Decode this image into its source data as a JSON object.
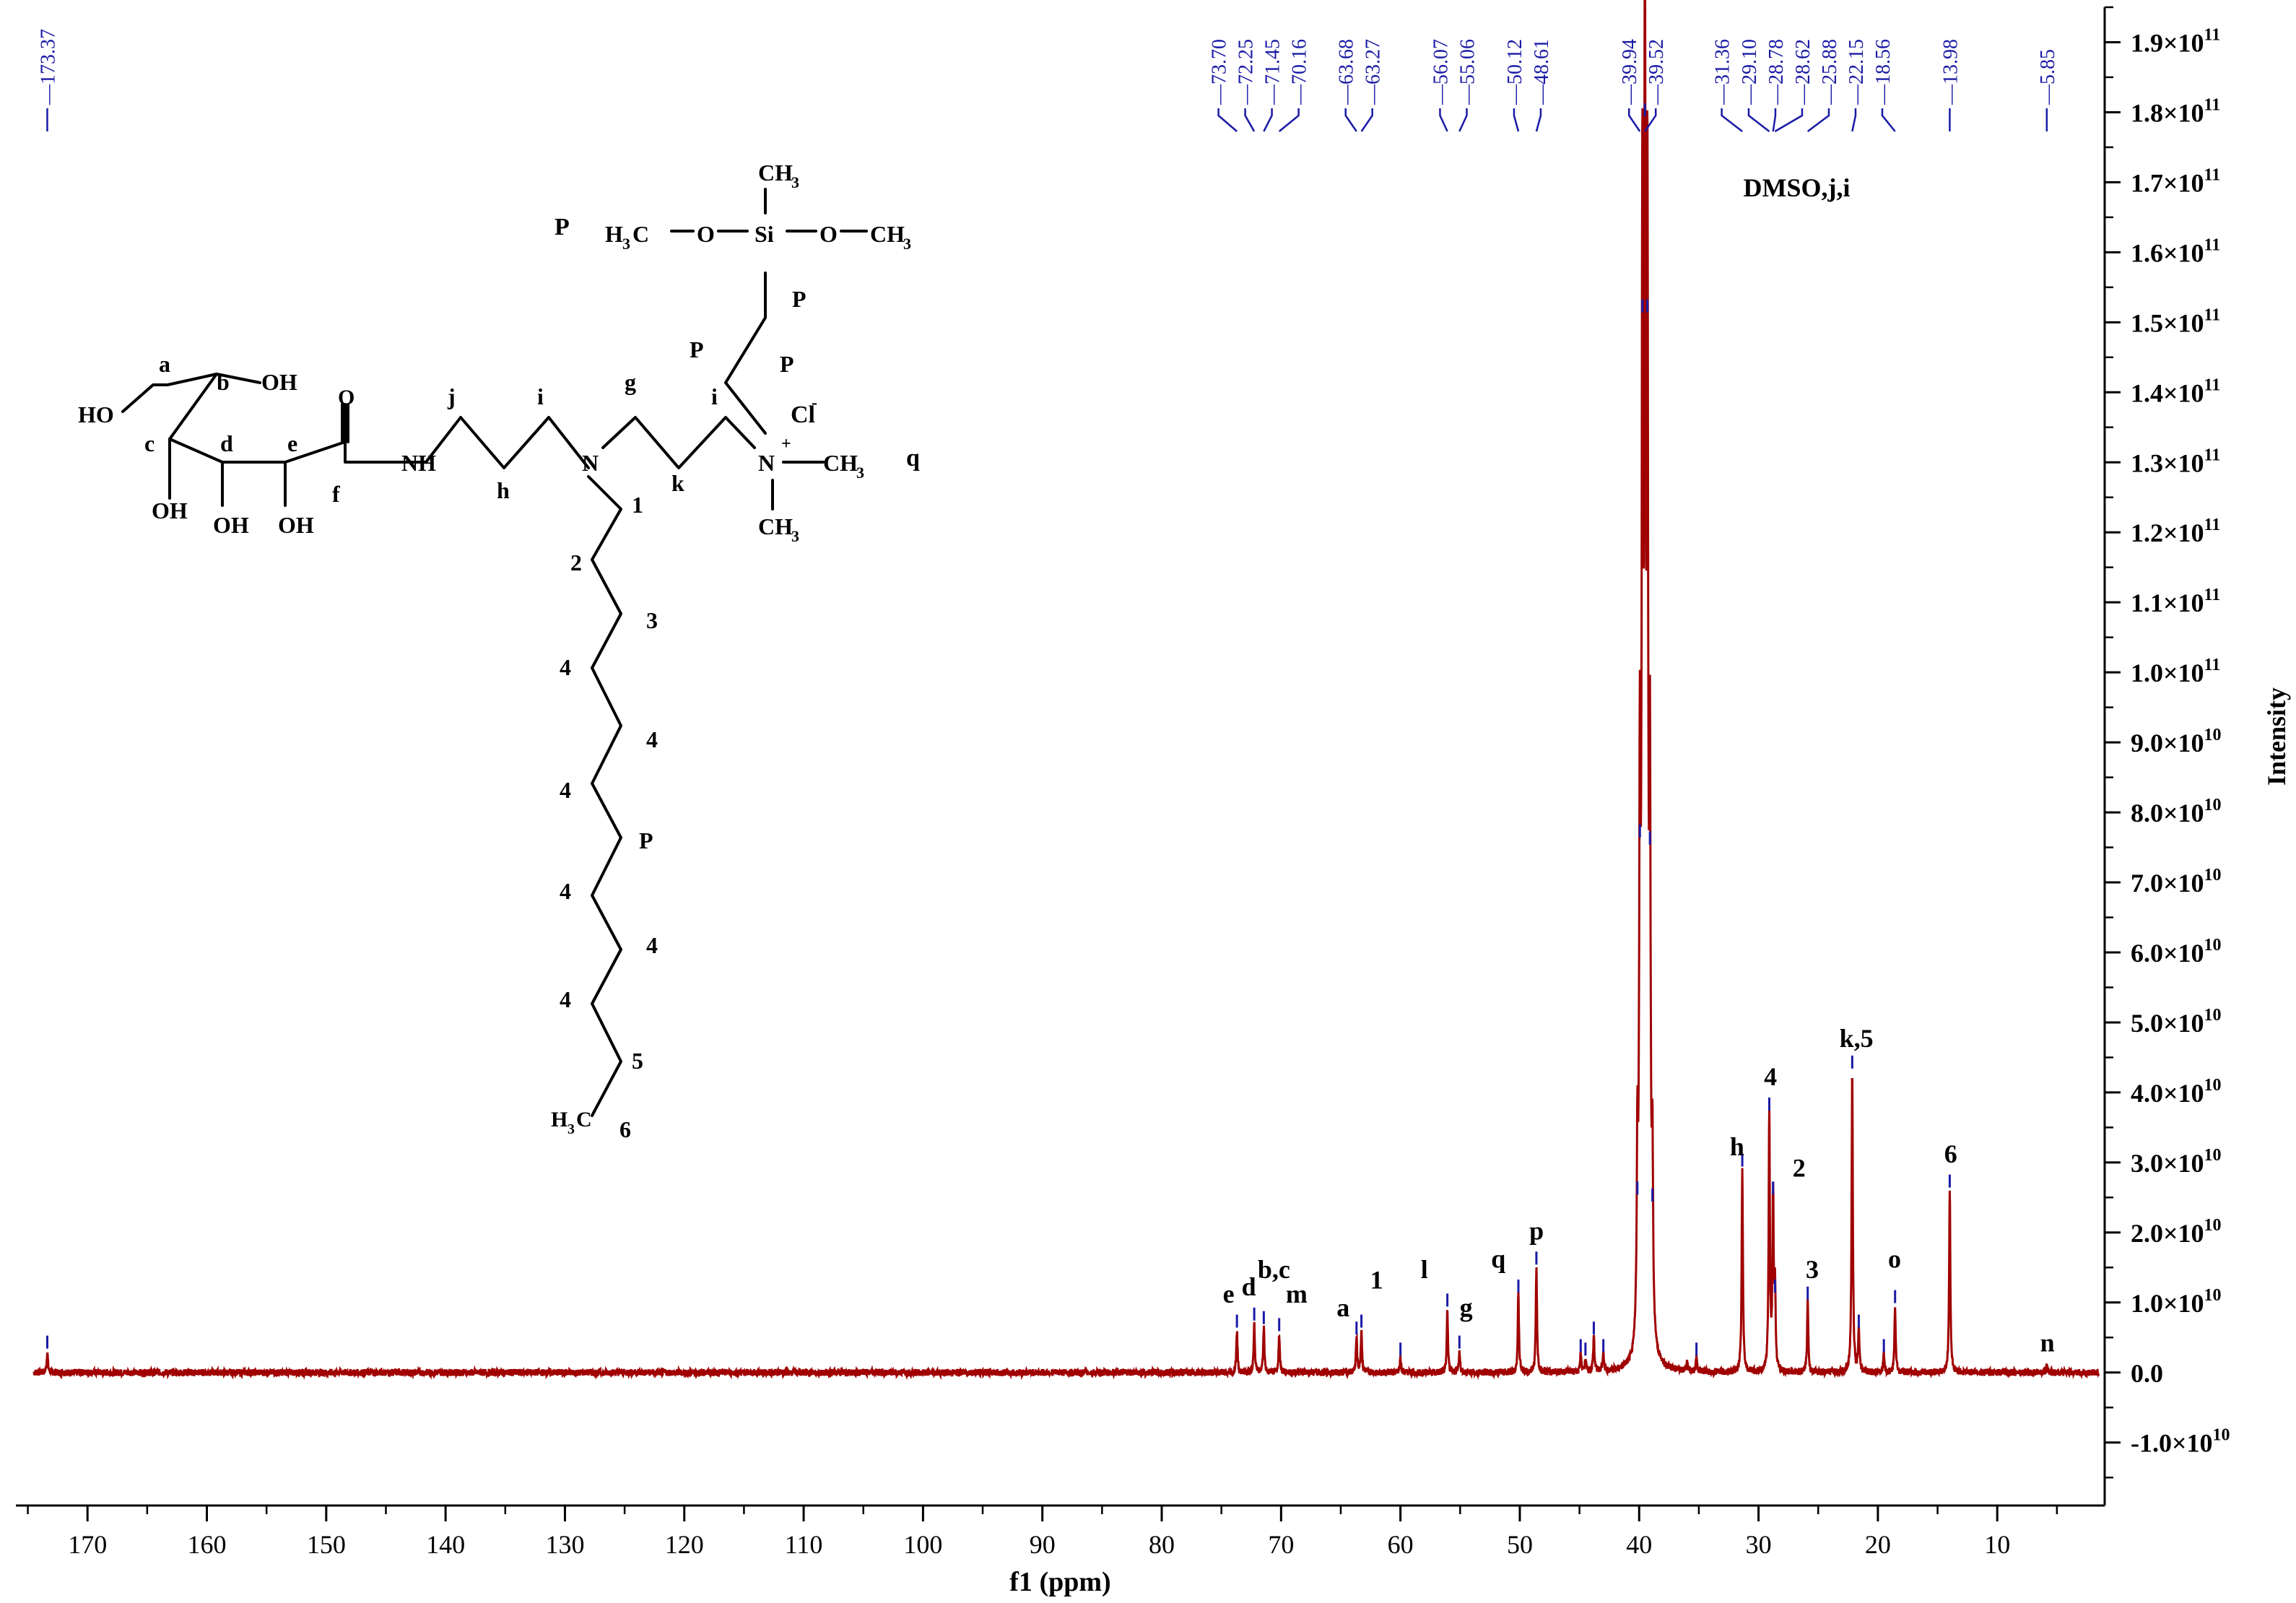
{
  "chart_data": {
    "type": "line",
    "xlabel": "f1 (ppm)",
    "ylabel": "Intensity",
    "xlim": [
      176,
      1
    ],
    "x_reversed": true,
    "ylim": [
      -19000000000.0,
      195000000000.0
    ],
    "x_ticks": [
      170,
      160,
      150,
      140,
      130,
      120,
      110,
      100,
      90,
      80,
      70,
      60,
      50,
      40,
      30,
      20,
      10
    ],
    "x_tick_labels": [
      "170",
      "160",
      "150",
      "140",
      "130",
      "120",
      "110",
      "100",
      "90",
      "80",
      "70",
      "60",
      "50",
      "40",
      "30",
      "20",
      "10"
    ],
    "y_ticks": [
      {
        "value": 190000000000.0,
        "mant": "1.9",
        "exp": "11"
      },
      {
        "value": 180000000000.0,
        "mant": "1.8",
        "exp": "11"
      },
      {
        "value": 170000000000.0,
        "mant": "1.7",
        "exp": "11"
      },
      {
        "value": 160000000000.0,
        "mant": "1.6",
        "exp": "11"
      },
      {
        "value": 150000000000.0,
        "mant": "1.5",
        "exp": "11"
      },
      {
        "value": 140000000000.0,
        "mant": "1.4",
        "exp": "11"
      },
      {
        "value": 130000000000.0,
        "mant": "1.3",
        "exp": "11"
      },
      {
        "value": 120000000000.0,
        "mant": "1.2",
        "exp": "11"
      },
      {
        "value": 110000000000.0,
        "mant": "1.1",
        "exp": "11"
      },
      {
        "value": 100000000000.0,
        "mant": "1.0",
        "exp": "11"
      },
      {
        "value": 90000000000.0,
        "mant": "9.0",
        "exp": "10"
      },
      {
        "value": 80000000000.0,
        "mant": "8.0",
        "exp": "10"
      },
      {
        "value": 70000000000.0,
        "mant": "7.0",
        "exp": "10"
      },
      {
        "value": 60000000000.0,
        "mant": "6.0",
        "exp": "10"
      },
      {
        "value": 50000000000.0,
        "mant": "5.0",
        "exp": "10"
      },
      {
        "value": 40000000000.0,
        "mant": "4.0",
        "exp": "10"
      },
      {
        "value": 30000000000.0,
        "mant": "3.0",
        "exp": "10"
      },
      {
        "value": 20000000000.0,
        "mant": "2.0",
        "exp": "10"
      },
      {
        "value": 10000000000.0,
        "mant": "1.0",
        "exp": "10"
      },
      {
        "value": 0,
        "mant": "0.0",
        "exp": ""
      },
      {
        "value": -10000000000.0,
        "mant": "-1.0",
        "exp": "10"
      }
    ],
    "series": [
      {
        "color": "#a00000",
        "peaks": [
          {
            "ppm": 173.37,
            "intensity": 3000000000.0
          },
          {
            "ppm": 73.7,
            "intensity": 6000000000.0
          },
          {
            "ppm": 72.25,
            "intensity": 7000000000.0
          },
          {
            "ppm": 71.45,
            "intensity": 6500000000.0
          },
          {
            "ppm": 70.16,
            "intensity": 5500000000.0
          },
          {
            "ppm": 63.68,
            "intensity": 5000000000.0
          },
          {
            "ppm": 63.27,
            "intensity": 6000000000.0
          },
          {
            "ppm": 60.0,
            "intensity": 2000000000.0
          },
          {
            "ppm": 56.07,
            "intensity": 9000000000.0
          },
          {
            "ppm": 55.06,
            "intensity": 3000000000.0
          },
          {
            "ppm": 50.12,
            "intensity": 11000000000.0
          },
          {
            "ppm": 48.61,
            "intensity": 15000000000.0
          },
          {
            "ppm": 44.9,
            "intensity": 2500000000.0
          },
          {
            "ppm": 44.5,
            "intensity": 2000000000.0
          },
          {
            "ppm": 43.8,
            "intensity": 5000000000.0
          },
          {
            "ppm": 43.0,
            "intensity": 2500000000.0
          },
          {
            "ppm": 40.15,
            "intensity": 25000000000.0
          },
          {
            "ppm": 39.94,
            "intensity": 76000000000.0
          },
          {
            "ppm": 39.73,
            "intensity": 151000000000.0
          },
          {
            "ppm": 39.52,
            "intensity": 179000000000.0
          },
          {
            "ppm": 39.31,
            "intensity": 151000000000.0
          },
          {
            "ppm": 39.1,
            "intensity": 75000000000.0
          },
          {
            "ppm": 38.89,
            "intensity": 24000000000.0
          },
          {
            "ppm": 36.0,
            "intensity": 1500000000.0
          },
          {
            "ppm": 35.2,
            "intensity": 2000000000.0
          },
          {
            "ppm": 31.36,
            "intensity": 29000000000.0
          },
          {
            "ppm": 29.1,
            "intensity": 37000000000.0
          },
          {
            "ppm": 28.78,
            "intensity": 25000000000.0
          },
          {
            "ppm": 28.62,
            "intensity": 11000000000.0
          },
          {
            "ppm": 25.88,
            "intensity": 10000000000.0
          },
          {
            "ppm": 22.15,
            "intensity": 43000000000.0
          },
          {
            "ppm": 21.6,
            "intensity": 6000000000.0
          },
          {
            "ppm": 19.5,
            "intensity": 2500000000.0
          },
          {
            "ppm": 18.56,
            "intensity": 9500000000.0
          },
          {
            "ppm": 13.98,
            "intensity": 26000000000.0
          },
          {
            "ppm": 5.85,
            "intensity": 1000000000.0
          }
        ]
      }
    ],
    "peak_list": [
      {
        "ppm": 173.37,
        "label": "173.37"
      },
      {
        "ppm": 73.7,
        "label": "73.70"
      },
      {
        "ppm": 72.25,
        "label": "72.25"
      },
      {
        "ppm": 71.45,
        "label": "71.45"
      },
      {
        "ppm": 70.16,
        "label": "70.16"
      },
      {
        "ppm": 63.68,
        "label": "63.68"
      },
      {
        "ppm": 63.27,
        "label": "63.27"
      },
      {
        "ppm": 56.07,
        "label": "56.07"
      },
      {
        "ppm": 55.06,
        "label": "55.06"
      },
      {
        "ppm": 50.12,
        "label": "50.12"
      },
      {
        "ppm": 48.61,
        "label": "48.61"
      },
      {
        "ppm": 39.94,
        "label": "39.94"
      },
      {
        "ppm": 39.52,
        "label": "39.52"
      },
      {
        "ppm": 31.36,
        "label": "31.36"
      },
      {
        "ppm": 29.1,
        "label": "29.10"
      },
      {
        "ppm": 28.78,
        "label": "28.78"
      },
      {
        "ppm": 28.62,
        "label": "28.62"
      },
      {
        "ppm": 25.88,
        "label": "25.88"
      },
      {
        "ppm": 22.15,
        "label": "22.15"
      },
      {
        "ppm": 18.56,
        "label": "18.56"
      },
      {
        "ppm": 13.98,
        "label": "13.98"
      },
      {
        "ppm": 5.85,
        "label": "5.85"
      }
    ],
    "annotations": [
      {
        "text": "e",
        "ppm": 74.4,
        "y": 10000000000.0
      },
      {
        "text": "d",
        "ppm": 72.7,
        "y": 11000000000.0
      },
      {
        "text": "b,c",
        "ppm": 70.6,
        "y": 13500000000.0
      },
      {
        "text": "m",
        "ppm": 68.7,
        "y": 10000000000.0
      },
      {
        "text": "a",
        "ppm": 64.8,
        "y": 8000000000.0
      },
      {
        "text": "1",
        "ppm": 62.0,
        "y": 12000000000.0
      },
      {
        "text": "l",
        "ppm": 58.0,
        "y": 13500000000.0
      },
      {
        "text": "g",
        "ppm": 54.5,
        "y": 8000000000.0
      },
      {
        "text": "q",
        "ppm": 51.8,
        "y": 15000000000.0
      },
      {
        "text": "p",
        "ppm": 48.6,
        "y": 19000000000.0
      },
      {
        "text": "DMSO,j,i",
        "ppm": 26.8,
        "y": 168000000000.0
      },
      {
        "text": "h",
        "ppm": 31.8,
        "y": 31000000000.0
      },
      {
        "text": "4",
        "ppm": 29.0,
        "y": 41000000000.0
      },
      {
        "text": "2",
        "ppm": 26.6,
        "y": 28000000000.0
      },
      {
        "text": "3",
        "ppm": 25.5,
        "y": 13500000000.0
      },
      {
        "text": "k,5",
        "ppm": 21.8,
        "y": 46500000000.0
      },
      {
        "text": "o",
        "ppm": 18.6,
        "y": 15000000000.0
      },
      {
        "text": "6",
        "ppm": 13.9,
        "y": 30000000000.0
      },
      {
        "text": "n",
        "ppm": 5.8,
        "y": 3000000000.0
      }
    ]
  },
  "structure": {
    "labels": [
      {
        "id": "HO_left",
        "text": "HO"
      },
      {
        "id": "a",
        "text": "a"
      },
      {
        "id": "b",
        "text": "b"
      },
      {
        "id": "OH_b",
        "text": "OH"
      },
      {
        "id": "c",
        "text": "c"
      },
      {
        "id": "d",
        "text": "d"
      },
      {
        "id": "OH_c",
        "text": "OH"
      },
      {
        "id": "OH_d",
        "text": "OH"
      },
      {
        "id": "e",
        "text": "e"
      },
      {
        "id": "OH_e",
        "text": "OH"
      },
      {
        "id": "O_carbonyl",
        "text": "O"
      },
      {
        "id": "f",
        "text": "f"
      },
      {
        "id": "NH",
        "text": "NH"
      },
      {
        "id": "j",
        "text": "j"
      },
      {
        "id": "h",
        "text": "h"
      },
      {
        "id": "i1",
        "text": "i"
      },
      {
        "id": "N1",
        "text": "N"
      },
      {
        "id": "g",
        "text": "g"
      },
      {
        "id": "k",
        "text": "k"
      },
      {
        "id": "i2",
        "text": "i"
      },
      {
        "id": "N2",
        "text": "N"
      },
      {
        "id": "plus",
        "text": "+"
      },
      {
        "id": "Cl",
        "text": "Cl"
      },
      {
        "id": "Cl_minus",
        "text": "-"
      },
      {
        "id": "CH3_right_sym",
        "text": "CH"
      },
      {
        "id": "CH3_right_sub",
        "text": "3"
      },
      {
        "id": "CH3_below_sym",
        "text": "CH"
      },
      {
        "id": "CH3_below_sub",
        "text": "3"
      },
      {
        "id": "q",
        "text": "q"
      },
      {
        "id": "P_top",
        "text": "P"
      },
      {
        "id": "H3C_sym_a",
        "text": "H"
      },
      {
        "id": "H3C_sub",
        "text": "3"
      },
      {
        "id": "H3C_sym_b",
        "text": "C"
      },
      {
        "id": "O_left",
        "text": "O"
      },
      {
        "id": "Si",
        "text": "Si"
      },
      {
        "id": "O_right",
        "text": "O"
      },
      {
        "id": "CH3_si_right_sym",
        "text": "CH"
      },
      {
        "id": "CH3_si_right_sub",
        "text": "3"
      },
      {
        "id": "CH3_si_top_sym",
        "text": "CH"
      },
      {
        "id": "CH3_si_top_sub",
        "text": "3"
      },
      {
        "id": "P_a",
        "text": "P"
      },
      {
        "id": "P_b",
        "text": "P"
      },
      {
        "id": "P_c",
        "text": "P"
      },
      {
        "id": "n1",
        "text": "1"
      },
      {
        "id": "n2",
        "text": "2"
      },
      {
        "id": "n3",
        "text": "3"
      },
      {
        "id": "n4a",
        "text": "4"
      },
      {
        "id": "n4b",
        "text": "4"
      },
      {
        "id": "n4c",
        "text": "4"
      },
      {
        "id": "nP",
        "text": "P"
      },
      {
        "id": "n4d",
        "text": "4"
      },
      {
        "id": "n4e",
        "text": "4"
      },
      {
        "id": "n4f",
        "text": "4"
      },
      {
        "id": "n5",
        "text": "5"
      },
      {
        "id": "H3C_end_a",
        "text": "H"
      },
      {
        "id": "H3C_end_sub",
        "text": "3"
      },
      {
        "id": "H3C_end_b",
        "text": "C"
      },
      {
        "id": "n6",
        "text": "6"
      }
    ]
  }
}
